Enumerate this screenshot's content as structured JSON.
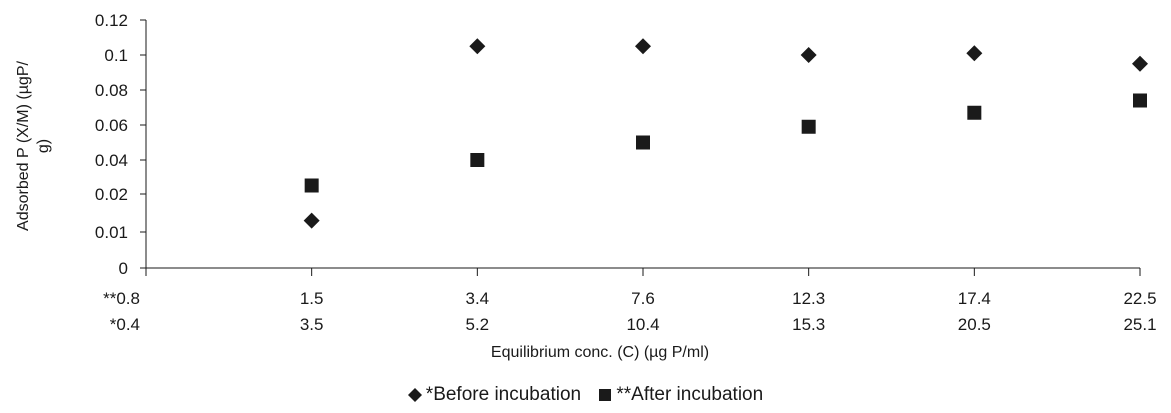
{
  "chart_data": {
    "type": "scatter",
    "xlabel": "Equilibrium conc. (C) (µg P/ml)",
    "ylabel": "Adsorbed P (X/M) (µgP/ g)",
    "ylabel_lines": [
      "Adsorbed P (X/M) (µgP/",
      "g)"
    ],
    "yticks": [
      "0",
      "0.01",
      "0.02",
      "0.04",
      "0.06",
      "0.08",
      "0.1",
      "0.12"
    ],
    "x_positions": [
      "",
      "1",
      "2",
      "3",
      "4",
      "5",
      "6"
    ],
    "x_tick_rows": [
      [
        "**0.8",
        "1.5",
        "3.4",
        "7.6",
        "12.3",
        "17.4",
        "22.5"
      ],
      [
        "*0.4",
        "3.5",
        "5.2",
        "10.4",
        "15.3",
        "20.5",
        "25.1"
      ]
    ],
    "series": [
      {
        "name": "*Before incubation",
        "marker": "diamond",
        "color": "#1a1a1a",
        "points": [
          {
            "x": 1,
            "y": 0.013
          },
          {
            "x": 2,
            "y": 0.105
          },
          {
            "x": 3,
            "y": 0.105
          },
          {
            "x": 4,
            "y": 0.1
          },
          {
            "x": 5,
            "y": 0.101
          },
          {
            "x": 6,
            "y": 0.095
          }
        ]
      },
      {
        "name": "**After incubation",
        "marker": "square",
        "color": "#1a1a1a",
        "points": [
          {
            "x": 1,
            "y": 0.025
          },
          {
            "x": 2,
            "y": 0.04
          },
          {
            "x": 3,
            "y": 0.05
          },
          {
            "x": 4,
            "y": 0.059
          },
          {
            "x": 5,
            "y": 0.067
          },
          {
            "x": 6,
            "y": 0.074
          }
        ]
      }
    ],
    "legend_position": "bottom",
    "grid": false
  }
}
